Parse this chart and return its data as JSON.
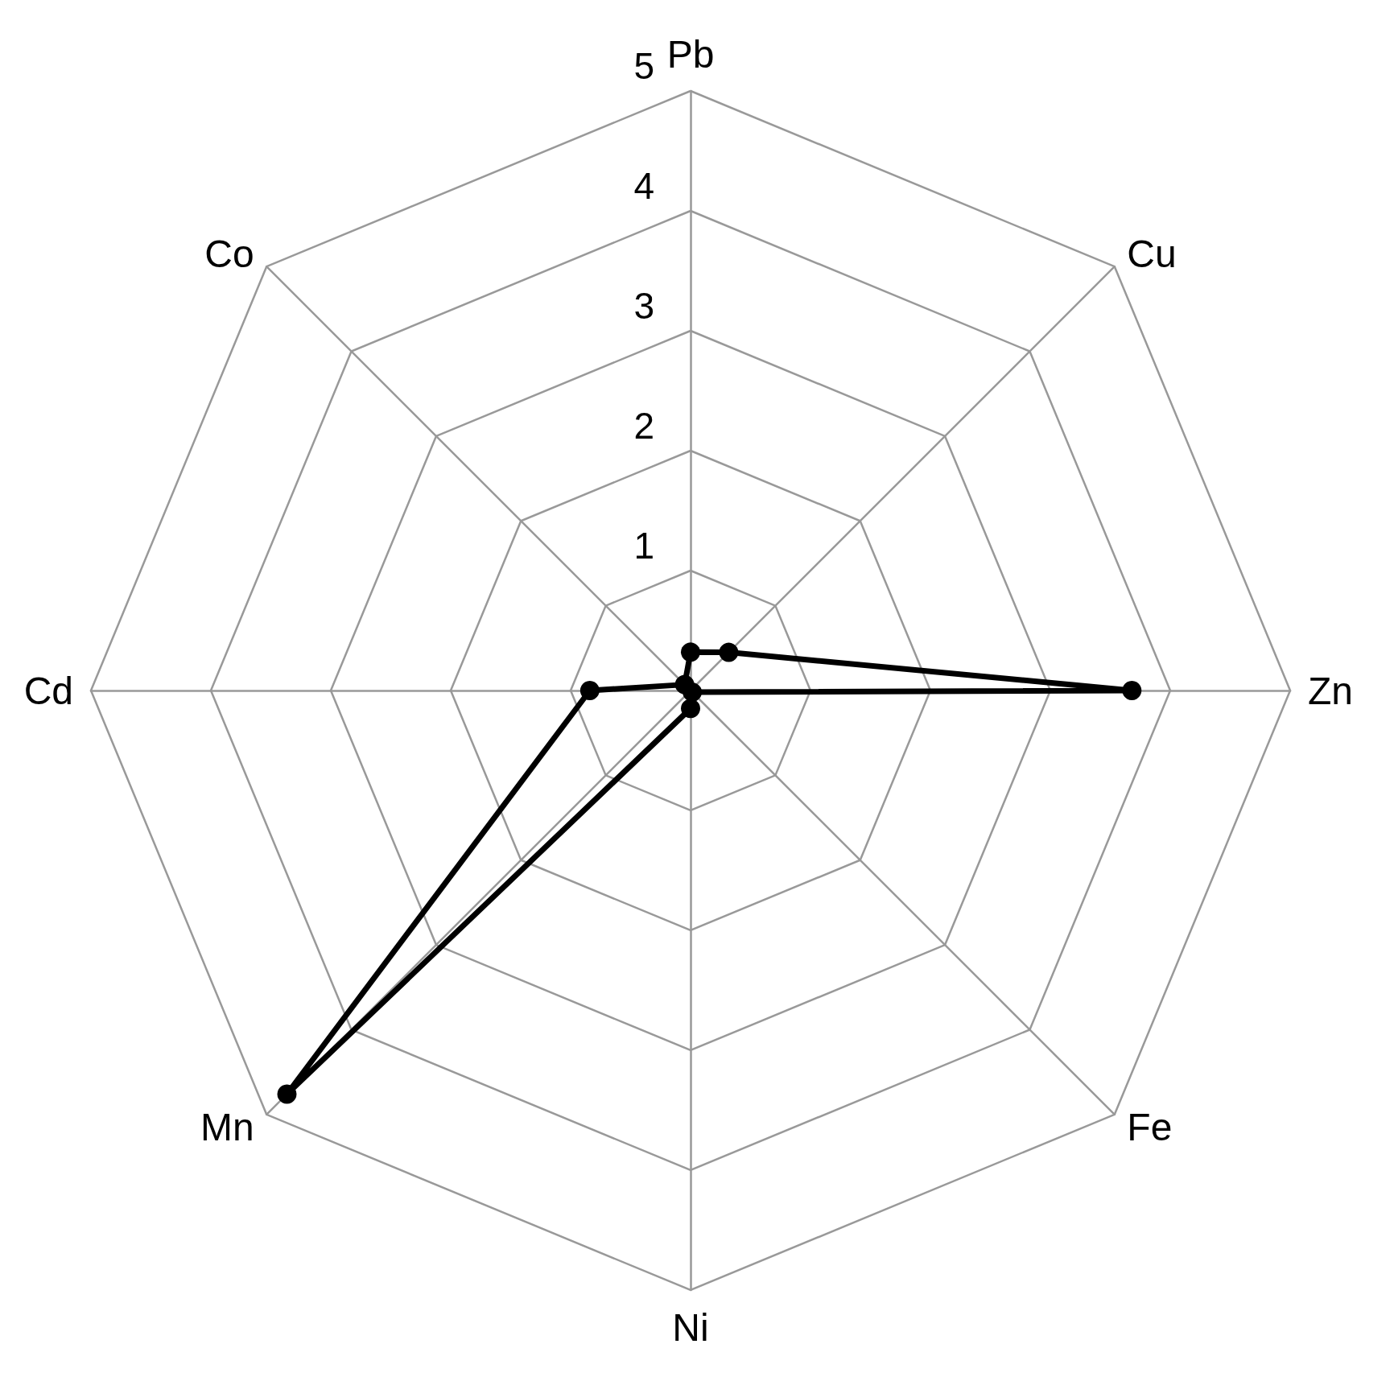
{
  "chart_data": {
    "type": "radar",
    "categories": [
      "Pb",
      "Cu",
      "Zn",
      "Fe",
      "Ni",
      "Mn",
      "Cd",
      "Co"
    ],
    "series": [
      {
        "color": "#000000",
        "values": [
          0.32,
          0.45,
          3.68,
          0.02,
          0.15,
          4.76,
          0.84,
          0.07
        ]
      }
    ],
    "ylim": [
      0,
      5
    ],
    "yticks": [
      1,
      2,
      3,
      4,
      5
    ],
    "grid": true,
    "marker": "circle",
    "line_style": "solid"
  }
}
